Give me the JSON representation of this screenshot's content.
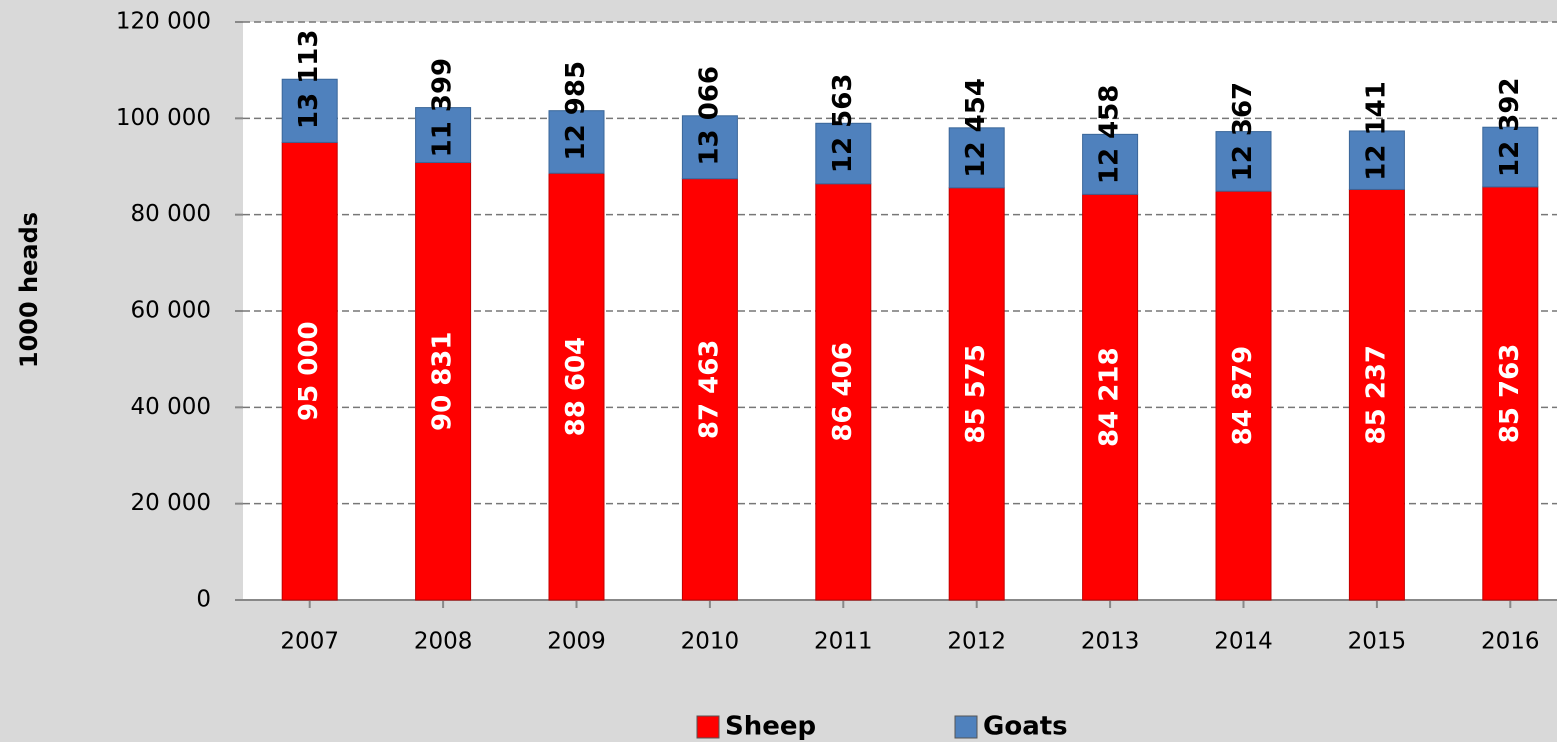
{
  "chart_data": {
    "type": "stacked_bar",
    "y_label": "1000 heads",
    "categories": [
      "2007",
      "2008",
      "2009",
      "2010",
      "2011",
      "2012",
      "2013",
      "2014",
      "2015",
      "2016"
    ],
    "series": [
      {
        "name": "Sheep",
        "color": "#ff0000",
        "values": [
          95000,
          90831,
          88604,
          87463,
          86406,
          85575,
          84218,
          84879,
          85237,
          85763
        ],
        "value_labels": [
          "95 000",
          "90 831",
          "88 604",
          "87 463",
          "86 406",
          "85 575",
          "84 218",
          "84 879",
          "85 237",
          "85 763"
        ]
      },
      {
        "name": "Goats",
        "color": "#4f81bd",
        "values": [
          13113,
          11399,
          12985,
          13066,
          12563,
          12454,
          12458,
          12367,
          12141,
          12392
        ],
        "value_labels": [
          "13 113",
          "11 399",
          "12 985",
          "13 066",
          "12 563",
          "12 454",
          "12 458",
          "12 367",
          "12 141",
          "12 392"
        ]
      }
    ],
    "ylim": [
      0,
      120000
    ],
    "yticks": [
      0,
      {
        "value": 20000,
        "label": "20 000"
      },
      {
        "value": 40000,
        "label": "40 000"
      },
      {
        "value": 60000,
        "label": "60 000"
      },
      {
        "value": 80000,
        "label": "80 000"
      },
      {
        "value": 100000,
        "label": "100 000"
      },
      {
        "value": 120000,
        "label": "120 000"
      }
    ],
    "grid": true,
    "legend": "bottom"
  }
}
